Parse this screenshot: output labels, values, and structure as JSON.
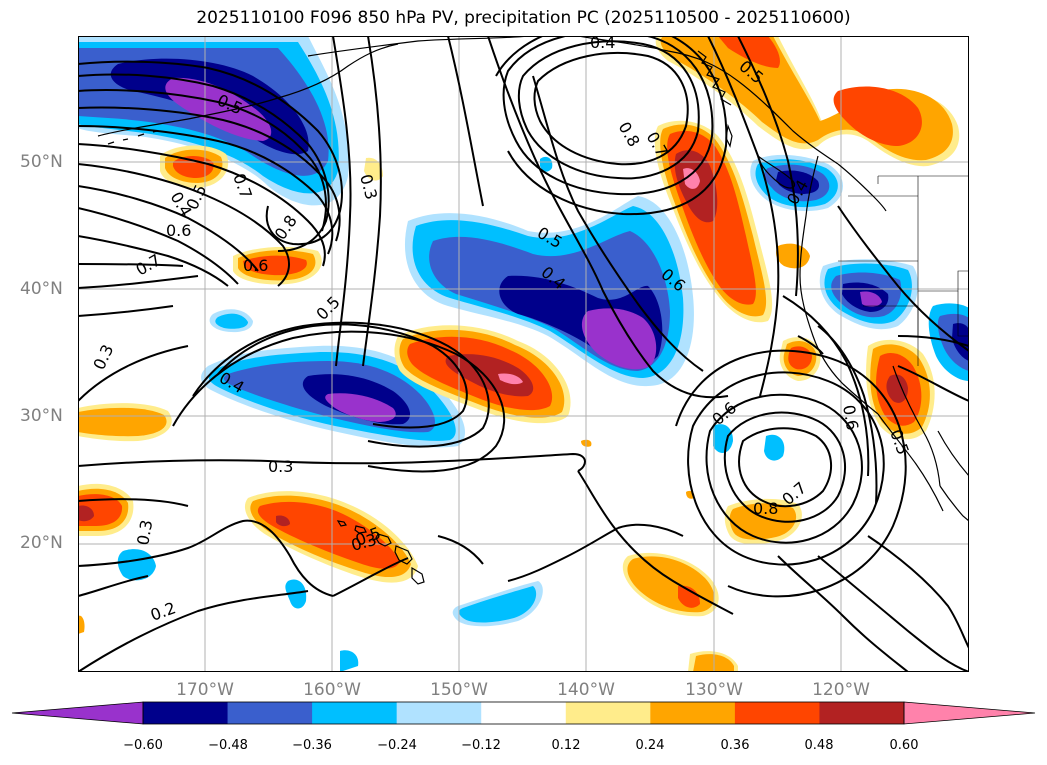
{
  "title": "2025110100 F096 850 hPa PV, precipitation PC (2025110500 - 2025110600)",
  "axes": {
    "lat_labels": [
      "50°N",
      "40°N",
      "30°N",
      "20°N"
    ],
    "lon_labels": [
      "170°W",
      "160°W",
      "150°W",
      "140°W",
      "130°W",
      "120°W"
    ]
  },
  "colorbar": {
    "ticks": [
      "−0.60",
      "−0.48",
      "−0.36",
      "−0.24",
      "−0.12",
      "0.12",
      "0.24",
      "0.36",
      "0.48",
      "0.60"
    ],
    "colors": [
      "#9932cc",
      "#00008b",
      "#3a5fcd",
      "#00bfff",
      "#b0e2ff",
      "#ffffff",
      "#ffec8b",
      "#ffa500",
      "#ff4500",
      "#b22222",
      "#ff82ab"
    ]
  },
  "contour_labels": [
    "0.5",
    "0.4",
    "0.5",
    "0.7",
    "0.8",
    "0.6",
    "0.7",
    "0.3",
    "0.6",
    "0.5",
    "0.4",
    "0.3",
    "0.3",
    "0.3",
    "0.2",
    "0.3",
    "0.4",
    "0.8",
    "0.7",
    "0.5",
    "0.6",
    "0.5",
    "0.4",
    "0.6",
    "0.6",
    "0.8",
    "0.7",
    "0.5",
    "0.5",
    "0.4"
  ],
  "palette": {
    "pos_light": "#ffec8b",
    "pos_orange": "#ffa500",
    "pos_red": "#ff4500",
    "pos_dark": "#b22222",
    "pos_pink": "#ff82ab",
    "neg_light": "#b0e2ff",
    "neg_cyan": "#00bfff",
    "neg_blue": "#3a5fcd",
    "neg_navy": "#00008b",
    "neg_purple": "#9932cc"
  }
}
